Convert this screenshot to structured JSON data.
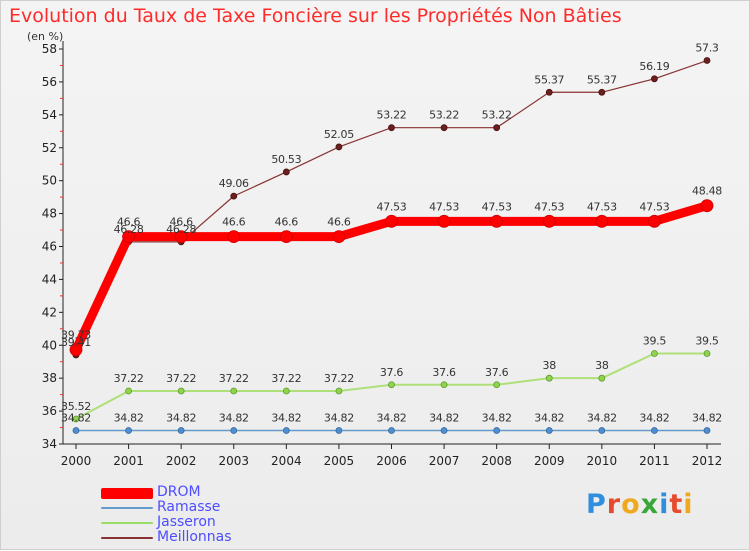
{
  "header": {
    "title": "Evolution du Taux de Taxe Foncière sur les Propriétés Non Bâties",
    "unit": "(en %)"
  },
  "brand": {
    "text": "Proxiti",
    "letter_colors": [
      "#2f8fde",
      "#e54b2c",
      "#f0a91e",
      "#3aa63a",
      "#2f8fde",
      "#e54b2c",
      "#f0a91e"
    ]
  },
  "colors": {
    "title": "#ff2b2b",
    "legend_text": "#4d4dff"
  },
  "chart_data": {
    "type": "line",
    "title": "Evolution du Taux de Taxe Foncière sur les Propriétés Non Bâties",
    "ylabel": "(en %)",
    "xlabel": "",
    "x": [
      "2000",
      "2001",
      "2002",
      "2003",
      "2004",
      "2005",
      "2006",
      "2007",
      "2008",
      "2009",
      "2010",
      "2011",
      "2012"
    ],
    "ylim": [
      34,
      58
    ],
    "yticks": [
      34,
      36,
      38,
      40,
      42,
      44,
      46,
      48,
      50,
      52,
      54,
      56,
      58
    ],
    "grid": false,
    "legend_position": "bottom-left",
    "series": [
      {
        "name": "DROM",
        "color": "#ff0000",
        "values": [
          39.73,
          46.6,
          46.6,
          46.6,
          46.6,
          46.6,
          47.53,
          47.53,
          47.53,
          47.53,
          47.53,
          47.53,
          48.48
        ],
        "labels": [
          "39.73",
          "46.6",
          "46.6",
          "46.6",
          "46.6",
          "46.6",
          "47.53",
          "47.53",
          "47.53",
          "47.53",
          "47.53",
          "47.53",
          "48.48"
        ]
      },
      {
        "name": "Ramasse",
        "color": "#6699cc",
        "values": [
          34.82,
          34.82,
          34.82,
          34.82,
          34.82,
          34.82,
          34.82,
          34.82,
          34.82,
          34.82,
          34.82,
          34.82,
          34.82
        ],
        "labels": [
          "34.82",
          "34.82",
          "34.82",
          "34.82",
          "34.82",
          "34.82",
          "34.82",
          "34.82",
          "34.82",
          "34.82",
          "34.82",
          "34.82",
          "34.82"
        ]
      },
      {
        "name": "Jasseron",
        "color": "#99dd66",
        "values": [
          35.52,
          37.22,
          37.22,
          37.22,
          37.22,
          37.22,
          37.6,
          37.6,
          37.6,
          38,
          38,
          39.5,
          39.5
        ],
        "labels": [
          "35.52",
          "37.22",
          "37.22",
          "37.22",
          "37.22",
          "37.22",
          "37.6",
          "37.6",
          "37.6",
          "38",
          "38",
          "39.5",
          "39.5"
        ]
      },
      {
        "name": "Meillonnas",
        "color": "#883333",
        "values": [
          39.41,
          46.28,
          46.28,
          49.06,
          50.53,
          52.05,
          53.22,
          53.22,
          53.22,
          55.37,
          55.37,
          56.19,
          57.3
        ],
        "labels": [
          "39.41",
          "46.28",
          "46.28",
          "49.06",
          "50.53",
          "52.05",
          "53.22",
          "53.22",
          "53.22",
          "55.37",
          "55.37",
          "56.19",
          "57.3"
        ]
      }
    ]
  }
}
